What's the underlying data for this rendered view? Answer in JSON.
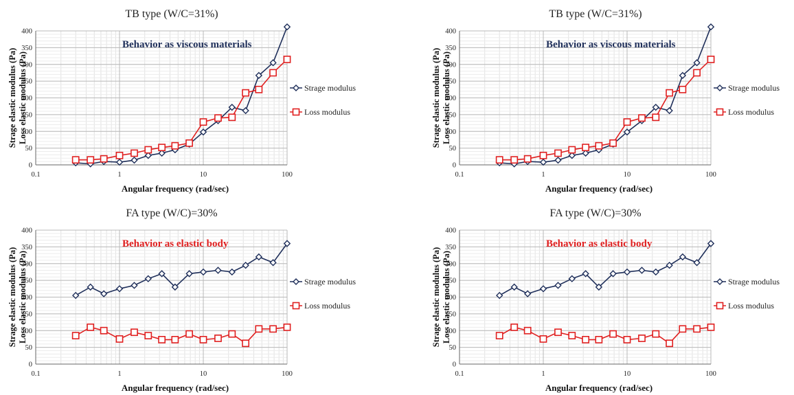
{
  "chart_data": [
    {
      "type": "line",
      "title": "TB type (W/C=31%)",
      "ylabel_line1": "Strage elastic modulus (Pa)",
      "ylabel_line2": "Loss elastic modulus (Pa)",
      "xlabel": "Angular frequency (rad/sec)",
      "annotation": "Behavior as viscous materials",
      "x_scale": "log",
      "xlim": [
        0.1,
        100
      ],
      "x_ticks": [
        "0.1",
        "1",
        "10",
        "100"
      ],
      "ylim": [
        0,
        400
      ],
      "y_ticks": [
        "0",
        "50",
        "100",
        "150",
        "200",
        "250",
        "300",
        "350",
        "400"
      ],
      "legend_position": "right",
      "x": [
        0.3,
        0.45,
        0.65,
        1,
        1.5,
        2.2,
        3.2,
        4.6,
        6.8,
        10,
        15,
        22,
        32,
        46,
        68,
        100
      ],
      "series": [
        {
          "name": "Strage modulus",
          "color": "#1f2f5a",
          "marker": "diamond",
          "values": [
            6,
            3,
            10,
            8,
            14,
            28,
            35,
            45,
            62,
            98,
            132,
            172,
            162,
            267,
            305,
            412
          ]
        },
        {
          "name": "Loss modulus",
          "color": "#e02020",
          "marker": "square",
          "values": [
            15,
            15,
            18,
            28,
            35,
            45,
            52,
            57,
            65,
            128,
            140,
            142,
            215,
            225,
            275,
            315
          ]
        }
      ]
    },
    {
      "type": "line",
      "title": "FA type (W/C)=30%",
      "ylabel_line1": "Strage elastic modulus (Pa)",
      "ylabel_line2": "Loss elastic modulus (Pa)",
      "xlabel": "Angular frequency (rad/sec)",
      "annotation": "Behavior as elastic body",
      "x_scale": "log",
      "xlim": [
        0.1,
        100
      ],
      "x_ticks": [
        "0.1",
        "1",
        "10",
        "100"
      ],
      "ylim": [
        0,
        400
      ],
      "y_ticks": [
        "0",
        "50",
        "100",
        "150",
        "200",
        "250",
        "300",
        "350",
        "400"
      ],
      "legend_position": "right",
      "x": [
        0.3,
        0.45,
        0.65,
        1,
        1.5,
        2.2,
        3.2,
        4.6,
        6.8,
        10,
        15,
        22,
        32,
        46,
        68,
        100
      ],
      "series": [
        {
          "name": "Strage modulus",
          "color": "#1f2f5a",
          "marker": "diamond",
          "values": [
            205,
            230,
            210,
            225,
            235,
            255,
            270,
            230,
            270,
            275,
            280,
            275,
            295,
            320,
            303,
            360
          ]
        },
        {
          "name": "Loss modulus",
          "color": "#e02020",
          "marker": "square",
          "values": [
            85,
            110,
            100,
            75,
            95,
            85,
            73,
            73,
            90,
            73,
            77,
            90,
            62,
            105,
            105,
            110
          ]
        }
      ]
    }
  ]
}
